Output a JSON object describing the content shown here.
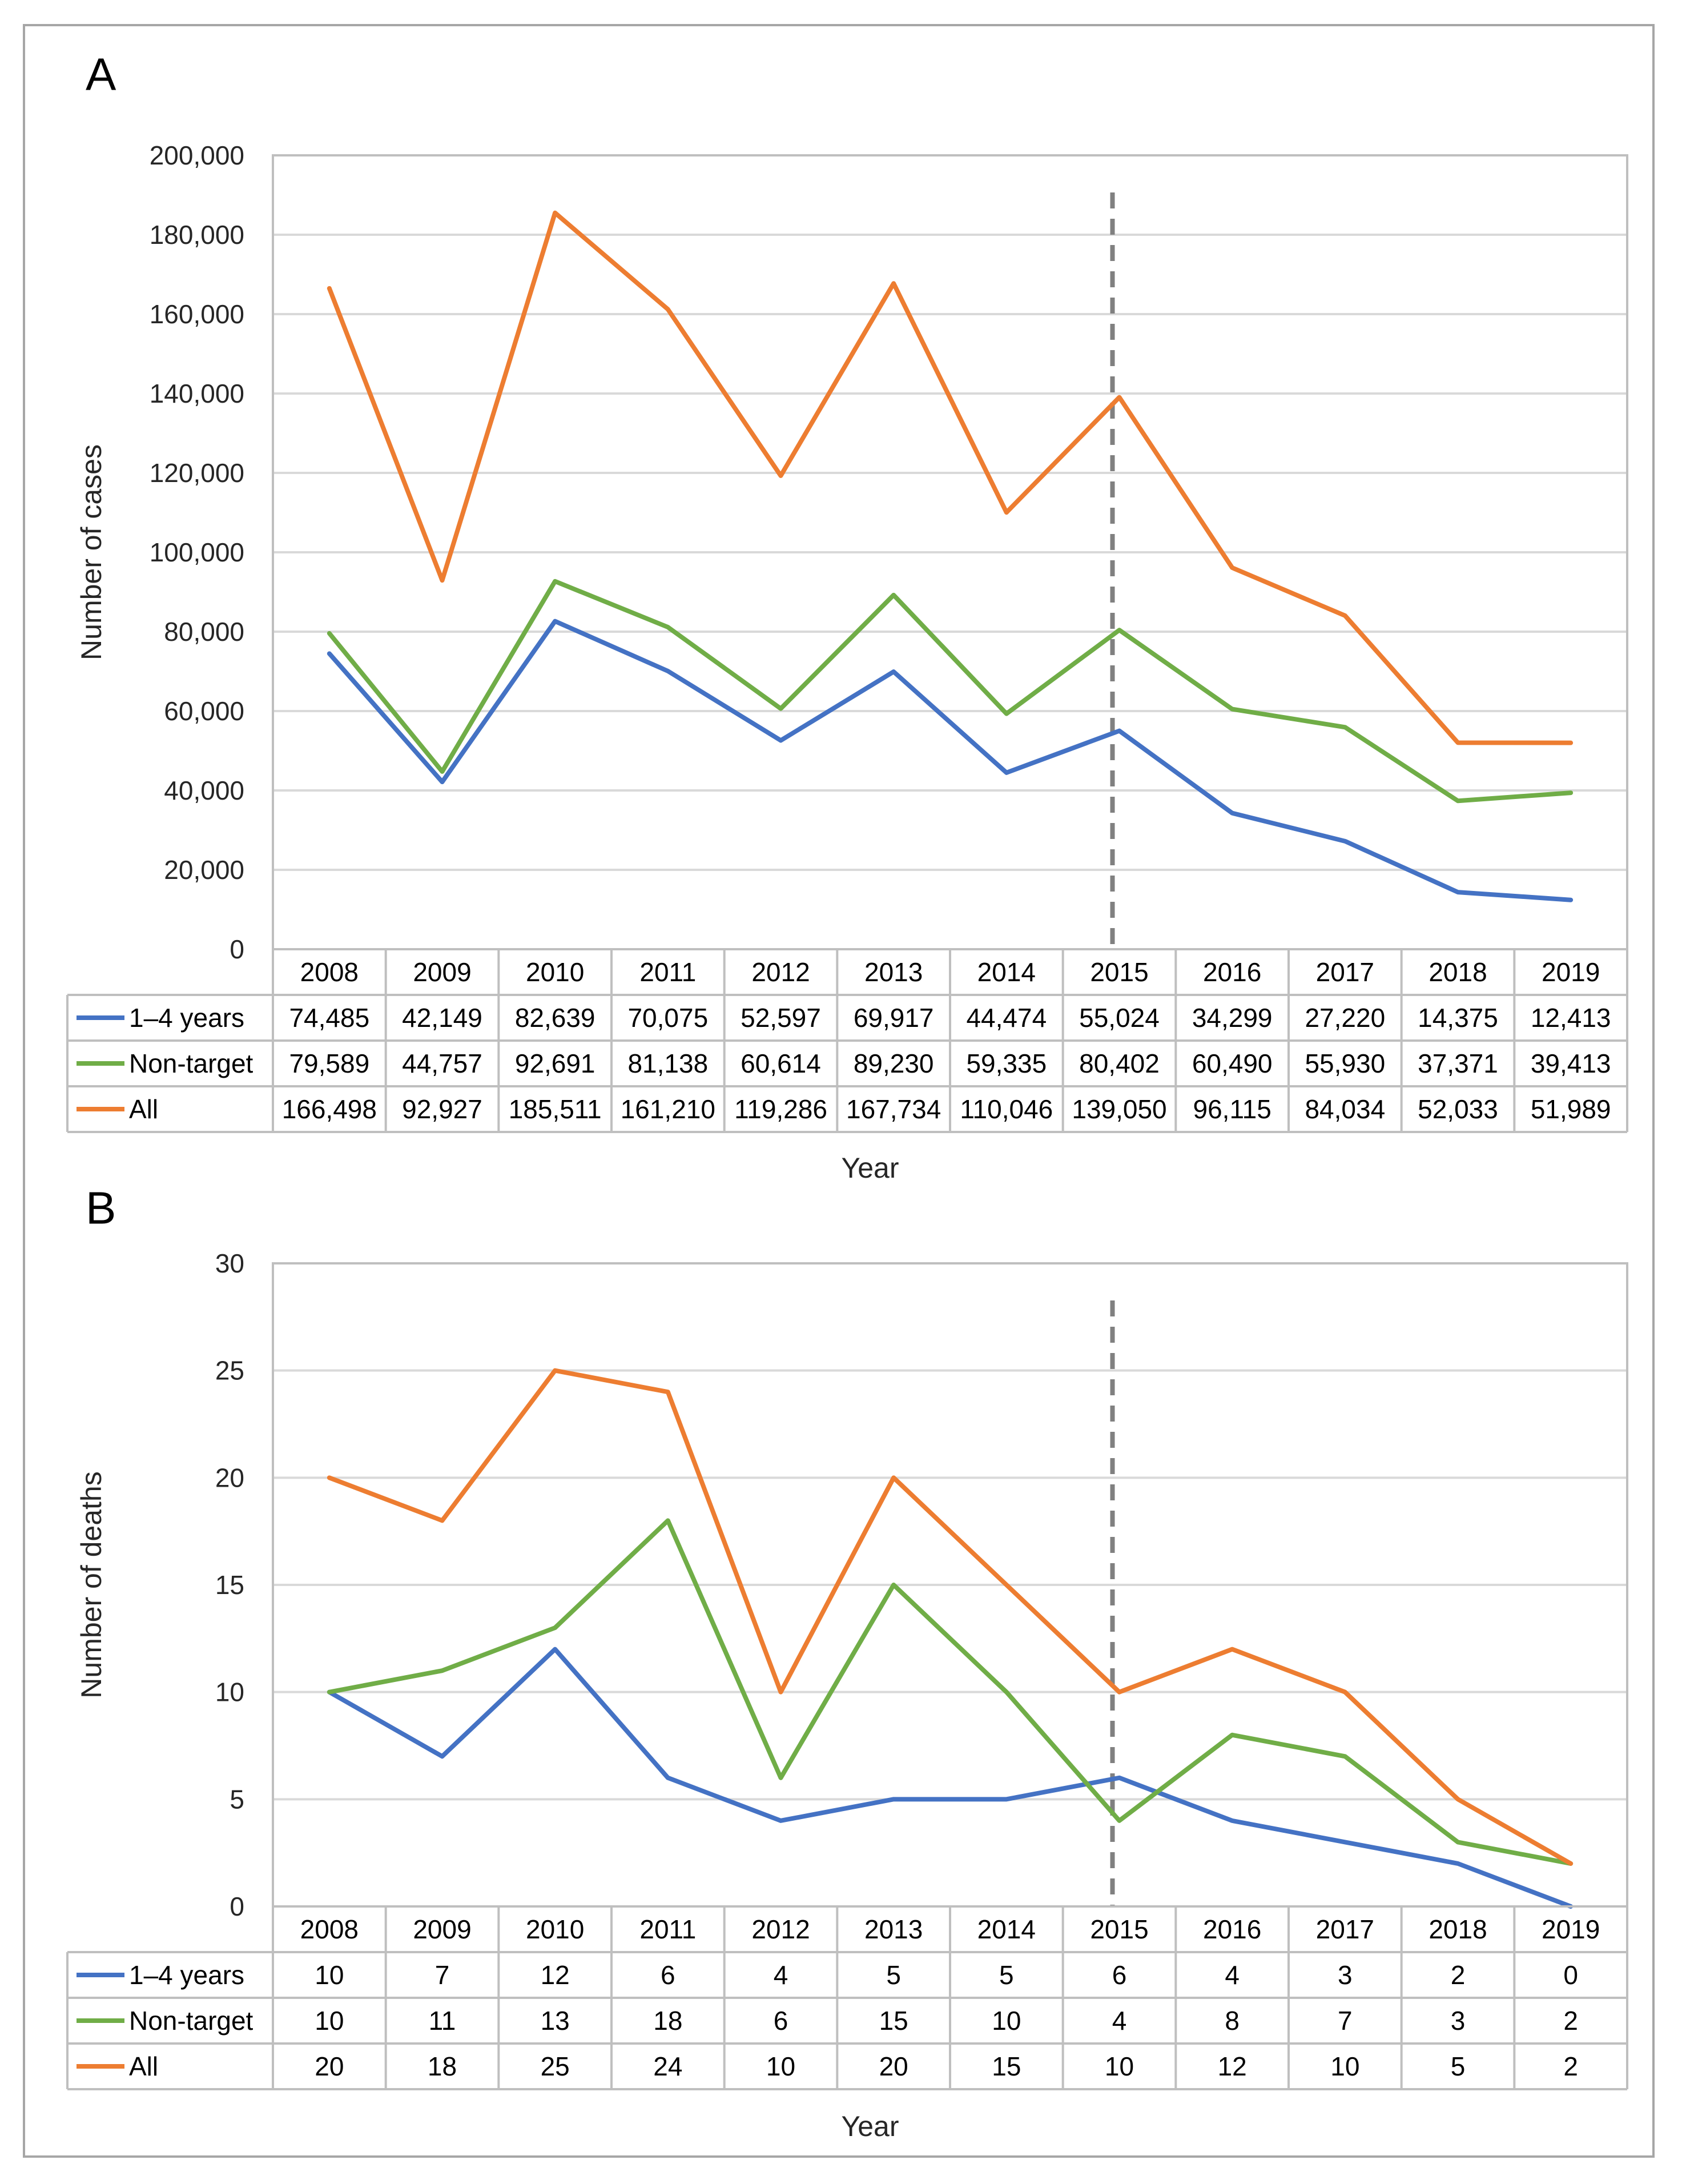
{
  "colors": {
    "one_to_four": "#4472c4",
    "non_target": "#70ad47",
    "all": "#ed7d31",
    "grid": "#d9d9d9",
    "table": "#bfbfbf",
    "marker": "#808080"
  },
  "chart_data": [
    {
      "panel_label": "A",
      "type": "line",
      "ylabel": "Number of cases",
      "xlabel": "Year",
      "ylim": [
        0,
        200000
      ],
      "y_step": 20000,
      "y_tick_labels": [
        "0",
        "20,000",
        "40,000",
        "60,000",
        "80,000",
        "100,000",
        "120,000",
        "140,000",
        "160,000",
        "180,000",
        "200,000"
      ],
      "categories": [
        "2008",
        "2009",
        "2010",
        "2011",
        "2012",
        "2013",
        "2014",
        "2015",
        "2016",
        "2017",
        "2018",
        "2019"
      ],
      "reference_line_at": "2015",
      "grid": true,
      "legend": "data table",
      "series": [
        {
          "key": "one_to_four",
          "name": "1–4 years",
          "values": [
            74485,
            42149,
            82639,
            70075,
            52597,
            69917,
            44474,
            55024,
            34299,
            27220,
            14375,
            12413
          ],
          "labels": [
            "74,485",
            "42,149",
            "82,639",
            "70,075",
            "52,597",
            "69,917",
            "44,474",
            "55,024",
            "34,299",
            "27,220",
            "14,375",
            "12,413"
          ]
        },
        {
          "key": "non_target",
          "name": "Non-target",
          "values": [
            79589,
            44757,
            92691,
            81138,
            60614,
            89230,
            59335,
            80402,
            60490,
            55930,
            37371,
            39413
          ],
          "labels": [
            "79,589",
            "44,757",
            "92,691",
            "81,138",
            "60,614",
            "89,230",
            "59,335",
            "80,402",
            "60,490",
            "55,930",
            "37,371",
            "39,413"
          ]
        },
        {
          "key": "all",
          "name": "All",
          "values": [
            166498,
            92927,
            185511,
            161210,
            119286,
            167734,
            110046,
            139050,
            96115,
            84034,
            52033,
            51989
          ],
          "labels": [
            "166,498",
            "92,927",
            "185,511",
            "161,210",
            "119,286",
            "167,734",
            "110,046",
            "139,050",
            "96,115",
            "84,034",
            "52,033",
            "51,989"
          ]
        }
      ]
    },
    {
      "panel_label": "B",
      "type": "line",
      "ylabel": "Number of deaths",
      "xlabel": "Year",
      "ylim": [
        0,
        30
      ],
      "y_step": 5,
      "y_tick_labels": [
        "0",
        "5",
        "10",
        "15",
        "20",
        "25",
        "30"
      ],
      "categories": [
        "2008",
        "2009",
        "2010",
        "2011",
        "2012",
        "2013",
        "2014",
        "2015",
        "2016",
        "2017",
        "2018",
        "2019"
      ],
      "reference_line_at": "2015",
      "grid": true,
      "legend": "data table",
      "series": [
        {
          "key": "one_to_four",
          "name": "1–4 years",
          "values": [
            10,
            7,
            12,
            6,
            4,
            5,
            5,
            6,
            4,
            3,
            2,
            0
          ],
          "labels": [
            "10",
            "7",
            "12",
            "6",
            "4",
            "5",
            "5",
            "6",
            "4",
            "3",
            "2",
            "0"
          ]
        },
        {
          "key": "non_target",
          "name": "Non-target",
          "values": [
            10,
            11,
            13,
            18,
            6,
            15,
            10,
            4,
            8,
            7,
            3,
            2
          ],
          "labels": [
            "10",
            "11",
            "13",
            "18",
            "6",
            "15",
            "10",
            "4",
            "8",
            "7",
            "3",
            "2"
          ]
        },
        {
          "key": "all",
          "name": "All",
          "values": [
            20,
            18,
            25,
            24,
            10,
            20,
            15,
            10,
            12,
            10,
            5,
            2
          ],
          "labels": [
            "20",
            "18",
            "25",
            "24",
            "10",
            "20",
            "15",
            "10",
            "12",
            "10",
            "5",
            "2"
          ]
        }
      ]
    }
  ]
}
